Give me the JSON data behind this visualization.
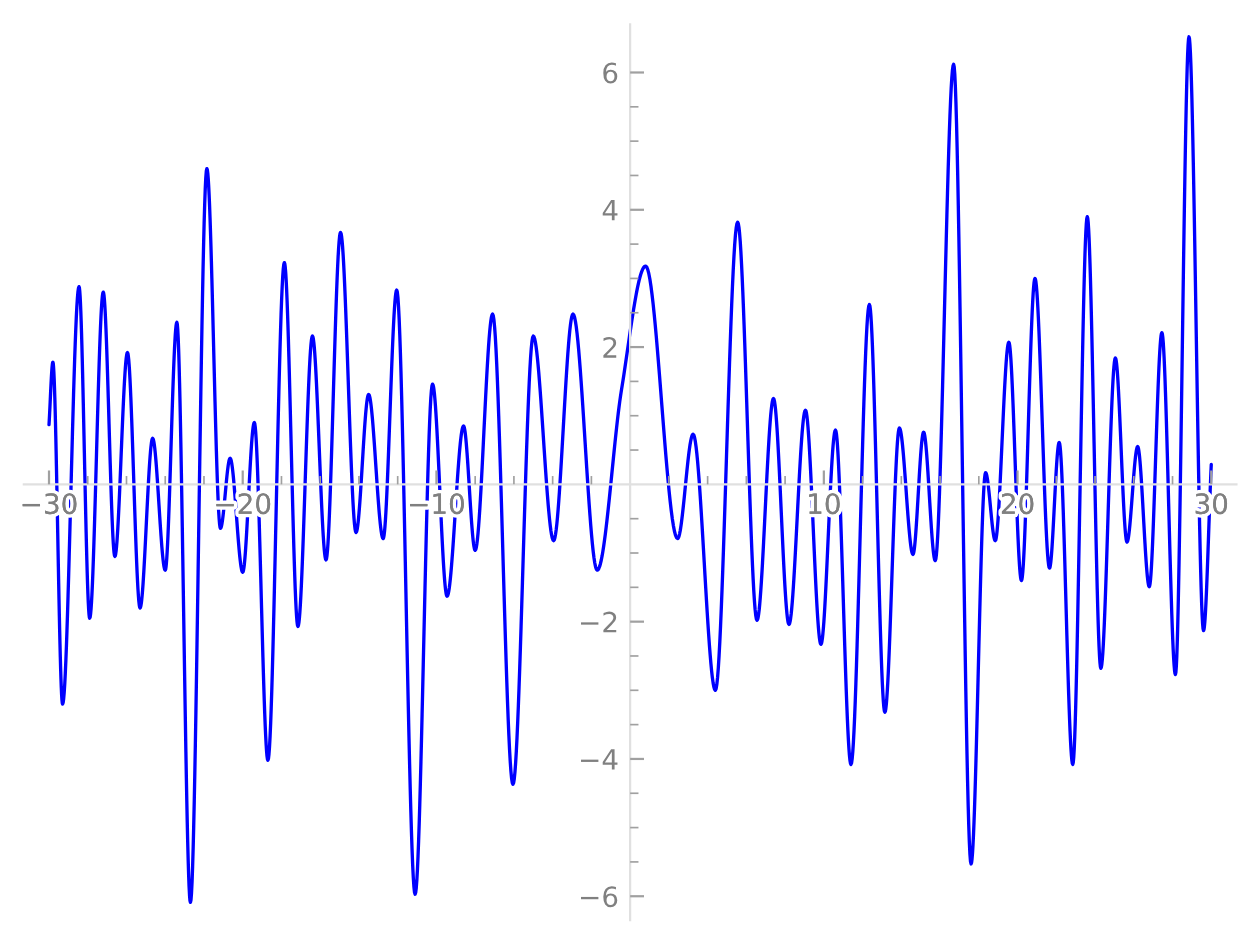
{
  "chart_data": {
    "type": "line",
    "x": [
      -30,
      -29.8,
      -29.3,
      -28.45,
      -27.9,
      -27.2,
      -26.6,
      -25.95,
      -25.3,
      -24.65,
      -24.0,
      -23.4,
      -22.7,
      -21.85,
      -21.15,
      -20.65,
      -20.0,
      -19.4,
      -18.7,
      -17.85,
      -17.15,
      -16.4,
      -15.7,
      -14.95,
      -14.15,
      -13.5,
      -12.75,
      -12.05,
      -11.1,
      -10.2,
      -9.45,
      -8.6,
      -8.0,
      -7.1,
      -6.05,
      -5.0,
      -3.95,
      -2.95,
      -1.7,
      -0.45,
      0.8,
      2.45,
      3.25,
      4.4,
      5.55,
      6.55,
      7.4,
      8.2,
      9.05,
      9.85,
      10.6,
      11.4,
      12.35,
      13.15,
      13.9,
      14.6,
      15.15,
      15.75,
      16.7,
      17.6,
      18.35,
      18.85,
      19.55,
      20.2,
      20.9,
      21.65,
      22.15,
      22.85,
      23.6,
      24.3,
      25.05,
      25.65,
      26.2,
      26.8,
      27.45,
      28.15,
      28.85,
      29.6,
      30
    ],
    "series": [
      {
        "color": "#0000ff",
        "values": [
          0.87,
          1.78,
          -3.2,
          2.88,
          -1.95,
          2.8,
          -1.05,
          1.92,
          -1.8,
          0.67,
          -1.25,
          2.36,
          -6.09,
          4.6,
          -0.64,
          0.38,
          -1.28,
          0.9,
          -4.02,
          3.23,
          -2.07,
          2.16,
          -1.1,
          3.67,
          -0.7,
          1.31,
          -0.79,
          2.83,
          -5.97,
          1.46,
          -1.63,
          0.85,
          -0.96,
          2.48,
          -4.37,
          2.16,
          -0.82,
          2.48,
          -1.25,
          1.37,
          3.18,
          -0.79,
          0.73,
          -3.0,
          3.82,
          -1.98,
          1.25,
          -2.04,
          1.08,
          -2.33,
          0.79,
          -4.08,
          2.62,
          -3.32,
          0.82,
          -1.02,
          0.76,
          -1.11,
          6.12,
          -5.53,
          0.17,
          -0.82,
          2.07,
          -1.4,
          3.0,
          -1.22,
          0.61,
          -4.08,
          3.9,
          -2.68,
          1.84,
          -0.84,
          0.55,
          -1.49,
          2.21,
          -2.77,
          6.52,
          -2.13,
          0.29
        ]
      }
    ],
    "xlim": [
      -31.3,
      31.3
    ],
    "ylim": [
      -6.35,
      6.7
    ],
    "xticks": [
      {
        "value": -30,
        "label": "−30"
      },
      {
        "value": -28,
        "label": null
      },
      {
        "value": -26,
        "label": null
      },
      {
        "value": -24,
        "label": null
      },
      {
        "value": -22,
        "label": null
      },
      {
        "value": -20,
        "label": "−20"
      },
      {
        "value": -18,
        "label": null
      },
      {
        "value": -16,
        "label": null
      },
      {
        "value": -14,
        "label": null
      },
      {
        "value": -12,
        "label": null
      },
      {
        "value": -10,
        "label": "−10"
      },
      {
        "value": -8,
        "label": null
      },
      {
        "value": -6,
        "label": null
      },
      {
        "value": -4,
        "label": null
      },
      {
        "value": -2,
        "label": null
      },
      {
        "value": 2,
        "label": null
      },
      {
        "value": 4,
        "label": null
      },
      {
        "value": 6,
        "label": null
      },
      {
        "value": 8,
        "label": null
      },
      10,
      {
        "value": 12,
        "label": null
      },
      {
        "value": 14,
        "label": null
      },
      {
        "value": 16,
        "label": null
      },
      {
        "value": 18,
        "label": null
      },
      20,
      {
        "value": 22,
        "label": null
      },
      {
        "value": 24,
        "label": null
      },
      {
        "value": 26,
        "label": null
      },
      {
        "value": 28,
        "label": null
      },
      30
    ],
    "yticks": [
      {
        "value": -6,
        "label": "−6"
      },
      {
        "value": -5.5,
        "label": null
      },
      {
        "value": -5,
        "label": null
      },
      {
        "value": -4.5,
        "label": null
      },
      {
        "value": -4,
        "label": "−4"
      },
      {
        "value": -3.5,
        "label": null
      },
      {
        "value": -3,
        "label": null
      },
      {
        "value": -2.5,
        "label": null
      },
      {
        "value": -2,
        "label": "−2"
      },
      {
        "value": -1.5,
        "label": null
      },
      {
        "value": -1,
        "label": null
      },
      {
        "value": -0.5,
        "label": null
      },
      {
        "value": 0.5,
        "label": null
      },
      {
        "value": 1,
        "label": null
      },
      {
        "value": 1.5,
        "label": null
      },
      2,
      {
        "value": 2.5,
        "label": null
      },
      {
        "value": 3,
        "label": null
      },
      {
        "value": 3.5,
        "label": null
      },
      4,
      {
        "value": 4.5,
        "label": null
      },
      {
        "value": 5,
        "label": null
      },
      {
        "value": 5.5,
        "label": null
      },
      6
    ],
    "grid": false
  }
}
